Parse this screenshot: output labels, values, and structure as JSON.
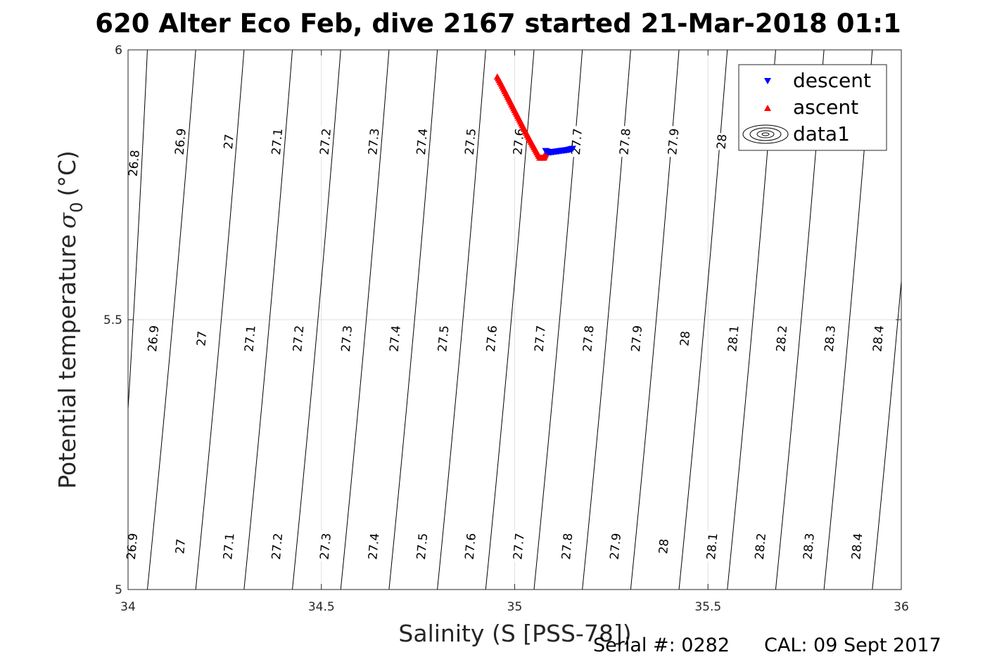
{
  "chart_data": {
    "type": "scatter",
    "title": "620 Alter Eco Feb, dive 2167 started 21-Mar-2018 01:1",
    "xlabel": "Salinity (S [PSS-78])",
    "ylabel_main": "Potential temperature",
    "ylabel_symbol": "σ",
    "ylabel_subscript": "0",
    "ylabel_unit": "(°C)",
    "xlim": [
      34,
      36
    ],
    "ylim": [
      5,
      6
    ],
    "x_ticks": [
      34,
      34.5,
      35,
      35.5,
      36
    ],
    "y_ticks": [
      5,
      5.5,
      6
    ],
    "x_tick_labels": [
      "34",
      "34.5",
      "35",
      "35.5",
      "36"
    ],
    "y_tick_labels": [
      "5",
      "5.5",
      "6"
    ],
    "grid": true,
    "legend_position": "top-right",
    "legend": [
      "descent",
      "ascent",
      "data1"
    ],
    "series": [
      {
        "name": "descent",
        "marker": "down-triangle",
        "color": "#0000ff",
        "x": [
          35.08,
          35.09,
          35.1,
          35.11,
          35.12,
          35.13,
          35.14,
          35.15
        ],
        "y": [
          5.813,
          5.81,
          5.811,
          5.812,
          5.813,
          5.814,
          5.815,
          5.817
        ]
      },
      {
        "name": "ascent",
        "marker": "up-triangle",
        "color": "#ff0000",
        "x": [
          34.955,
          34.965,
          34.975,
          34.985,
          34.995,
          35.005,
          35.015,
          35.025,
          35.035,
          35.045,
          35.055,
          35.065,
          35.075,
          35.08
        ],
        "y": [
          5.95,
          5.937,
          5.923,
          5.909,
          5.895,
          5.881,
          5.867,
          5.853,
          5.839,
          5.826,
          5.813,
          5.8,
          5.8,
          5.808
        ]
      }
    ],
    "contours": {
      "name": "data1",
      "color": "#000000",
      "lines": [
        {
          "top_x": 34.05,
          "bottom_x": 33.97,
          "label": ""
        },
        {
          "top_x": 34.175,
          "bottom_x": 34.05
        },
        {
          "top_x": 34.3,
          "bottom_x": 34.175
        },
        {
          "top_x": 34.425,
          "bottom_x": 34.3
        },
        {
          "top_x": 34.55,
          "bottom_x": 34.425
        },
        {
          "top_x": 34.675,
          "bottom_x": 34.55
        },
        {
          "top_x": 34.8,
          "bottom_x": 34.675
        },
        {
          "top_x": 34.925,
          "bottom_x": 34.8
        },
        {
          "top_x": 35.05,
          "bottom_x": 34.925
        },
        {
          "top_x": 35.175,
          "bottom_x": 35.05
        },
        {
          "top_x": 35.3,
          "bottom_x": 35.175
        },
        {
          "top_x": 35.425,
          "bottom_x": 35.3
        },
        {
          "top_x": 35.55,
          "bottom_x": 35.425
        },
        {
          "top_x": 35.675,
          "bottom_x": 35.55
        },
        {
          "top_x": 35.8,
          "bottom_x": 35.675
        },
        {
          "top_x": 35.925,
          "bottom_x": 35.8
        },
        {
          "top_x": 36.05,
          "bottom_x": 35.925
        },
        {
          "top_x": 36.175,
          "bottom_x": 36.05
        }
      ],
      "labels": [
        {
          "text": "26.8",
          "x": 34.015,
          "y": 5.79
        },
        {
          "text": "26.9",
          "x": 34.135,
          "y": 5.83
        },
        {
          "text": "27",
          "x": 34.26,
          "y": 5.83
        },
        {
          "text": "27.1",
          "x": 34.385,
          "y": 5.83
        },
        {
          "text": "27.2",
          "x": 34.51,
          "y": 5.83
        },
        {
          "text": "27.3",
          "x": 34.635,
          "y": 5.83
        },
        {
          "text": "27.4",
          "x": 34.76,
          "y": 5.83
        },
        {
          "text": "27.5",
          "x": 34.885,
          "y": 5.83
        },
        {
          "text": "27.6",
          "x": 35.01,
          "y": 5.83
        },
        {
          "text": "27.7",
          "x": 35.16,
          "y": 5.83
        },
        {
          "text": "27.8",
          "x": 35.285,
          "y": 5.83
        },
        {
          "text": "27.9",
          "x": 35.41,
          "y": 5.83
        },
        {
          "text": "28",
          "x": 35.535,
          "y": 5.83
        },
        {
          "text": "26.9",
          "x": 34.065,
          "y": 5.465
        },
        {
          "text": "27",
          "x": 34.19,
          "y": 5.465
        },
        {
          "text": "27.1",
          "x": 34.315,
          "y": 5.465
        },
        {
          "text": "27.2",
          "x": 34.44,
          "y": 5.465
        },
        {
          "text": "27.3",
          "x": 34.565,
          "y": 5.465
        },
        {
          "text": "27.4",
          "x": 34.69,
          "y": 5.465
        },
        {
          "text": "27.5",
          "x": 34.815,
          "y": 5.465
        },
        {
          "text": "27.6",
          "x": 34.94,
          "y": 5.465
        },
        {
          "text": "27.7",
          "x": 35.065,
          "y": 5.465
        },
        {
          "text": "27.8",
          "x": 35.19,
          "y": 5.465
        },
        {
          "text": "27.9",
          "x": 35.315,
          "y": 5.465
        },
        {
          "text": "28",
          "x": 35.44,
          "y": 5.465
        },
        {
          "text": "28.1",
          "x": 35.565,
          "y": 5.465
        },
        {
          "text": "28.2",
          "x": 35.69,
          "y": 5.465
        },
        {
          "text": "28.3",
          "x": 35.815,
          "y": 5.465
        },
        {
          "text": "28.4",
          "x": 35.94,
          "y": 5.465
        },
        {
          "text": "26.9",
          "x": 34.01,
          "y": 5.08
        },
        {
          "text": "27",
          "x": 34.135,
          "y": 5.08
        },
        {
          "text": "27.1",
          "x": 34.26,
          "y": 5.08
        },
        {
          "text": "27.2",
          "x": 34.385,
          "y": 5.08
        },
        {
          "text": "27.3",
          "x": 34.51,
          "y": 5.08
        },
        {
          "text": "27.4",
          "x": 34.635,
          "y": 5.08
        },
        {
          "text": "27.5",
          "x": 34.76,
          "y": 5.08
        },
        {
          "text": "27.6",
          "x": 34.885,
          "y": 5.08
        },
        {
          "text": "27.7",
          "x": 35.01,
          "y": 5.08
        },
        {
          "text": "27.8",
          "x": 35.135,
          "y": 5.08
        },
        {
          "text": "27.9",
          "x": 35.26,
          "y": 5.08
        },
        {
          "text": "28",
          "x": 35.385,
          "y": 5.08
        },
        {
          "text": "28.1",
          "x": 35.51,
          "y": 5.08
        },
        {
          "text": "28.2",
          "x": 35.635,
          "y": 5.08
        },
        {
          "text": "28.3",
          "x": 35.76,
          "y": 5.08
        },
        {
          "text": "28.4",
          "x": 35.885,
          "y": 5.08
        }
      ]
    }
  },
  "footer": {
    "serial_label": "Serial #: 0282",
    "cal_label": "CAL: 09 Sept 2017"
  },
  "colors": {
    "grid": "#dfdfdf",
    "axis": "#262626",
    "descent": "#0000ff",
    "ascent": "#ff0000"
  }
}
